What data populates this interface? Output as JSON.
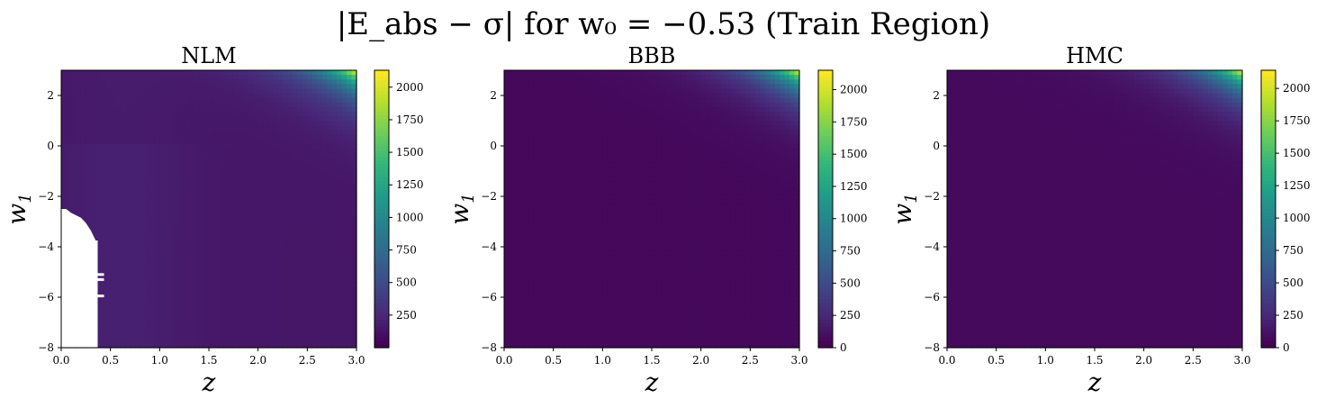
{
  "figure": {
    "suptitle": "|E_abs − σ| for w₀ = −0.53 (Train Region)"
  },
  "colormap": [
    "#440154",
    "#482878",
    "#3e4989",
    "#31688e",
    "#26828e",
    "#1f9e89",
    "#35b779",
    "#6ece58",
    "#b5de2b",
    "#fde725"
  ],
  "mask_color": "#ffffff",
  "chart_data": [
    {
      "type": "heatmap",
      "title": "NLM",
      "xlabel": "z",
      "ylabel": "w_1",
      "xlim": [
        0.0,
        3.0
      ],
      "ylim": [
        -8,
        3
      ],
      "xticks": [
        "0.0",
        "0.5",
        "1.0",
        "1.5",
        "2.0",
        "2.5",
        "3.0"
      ],
      "yticks": [
        "2",
        "0",
        "−2",
        "−4",
        "−6",
        "−8"
      ],
      "colorbar": {
        "min": 0,
        "max": 2130,
        "ticks": [
          "250",
          "500",
          "750",
          "1000",
          "1250",
          "1500",
          "1750",
          "2000"
        ]
      },
      "grid": false,
      "nan_region": [
        [
          0.0,
          -8
        ],
        [
          0.0,
          -2.5
        ],
        [
          0.05,
          -2.5
        ],
        [
          0.1,
          -2.65
        ],
        [
          0.2,
          -2.85
        ],
        [
          0.25,
          -3.05
        ],
        [
          0.3,
          -3.35
        ],
        [
          0.35,
          -3.75
        ],
        [
          0.37,
          -3.75
        ],
        [
          0.37,
          -8
        ]
      ],
      "nan_marks": [
        [
          0.37,
          -5.1
        ],
        [
          0.37,
          -5.3
        ],
        [
          0.37,
          -5.95
        ]
      ]
    },
    {
      "type": "heatmap",
      "title": "BBB",
      "xlabel": "z",
      "ylabel": "w_1",
      "xlim": [
        0.0,
        3.0
      ],
      "ylim": [
        -8,
        3
      ],
      "xticks": [
        "0.0",
        "0.5",
        "1.0",
        "1.5",
        "2.0",
        "2.5",
        "3.0"
      ],
      "yticks": [
        "2",
        "0",
        "−2",
        "−4",
        "−6",
        "−8"
      ],
      "colorbar": {
        "min": 0,
        "max": 2150,
        "ticks": [
          "0",
          "250",
          "500",
          "750",
          "1000",
          "1250",
          "1500",
          "1750",
          "2000"
        ]
      },
      "grid": false
    },
    {
      "type": "heatmap",
      "title": "HMC",
      "xlabel": "z",
      "ylabel": "w_1",
      "xlim": [
        0.0,
        3.0
      ],
      "ylim": [
        -8,
        3
      ],
      "xticks": [
        "0.0",
        "0.5",
        "1.0",
        "1.5",
        "2.0",
        "2.5",
        "3.0"
      ],
      "yticks": [
        "2",
        "0",
        "−2",
        "−4",
        "−6",
        "−8"
      ],
      "colorbar": {
        "min": 0,
        "max": 2140,
        "ticks": [
          "0",
          "250",
          "500",
          "750",
          "1000",
          "1250",
          "1500",
          "1750",
          "2000"
        ]
      },
      "grid": false
    }
  ]
}
